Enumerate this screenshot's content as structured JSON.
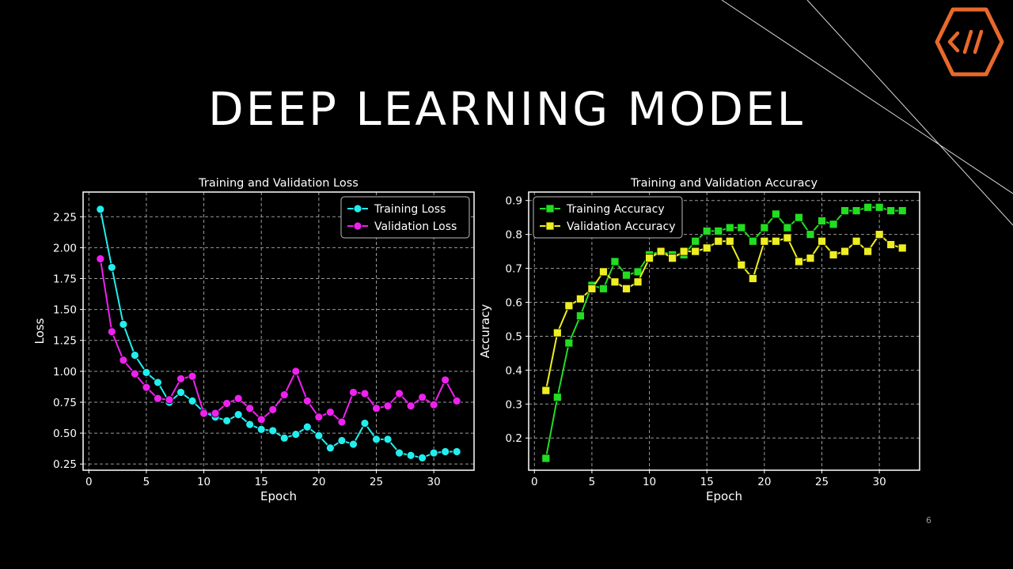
{
  "slide": {
    "title": "DEEP LEARNING MODEL",
    "page_number": "6",
    "logo_icon": "code-slash-hexagon-icon",
    "logo_color": "#e8692b"
  },
  "chart_data": [
    {
      "type": "line",
      "title": "Training and Validation Loss",
      "xlabel": "Epoch",
      "ylabel": "Loss",
      "xlim": [
        -0.5,
        33.5
      ],
      "ylim": [
        0.2,
        2.45
      ],
      "xticks": [
        0,
        5,
        10,
        15,
        20,
        25,
        30
      ],
      "yticks": [
        0.25,
        0.5,
        0.75,
        1.0,
        1.25,
        1.5,
        1.75,
        2.0,
        2.25
      ],
      "ytick_labels": [
        "0.25",
        "0.50",
        "0.75",
        "1.00",
        "1.25",
        "1.50",
        "1.75",
        "2.00",
        "2.25"
      ],
      "grid": true,
      "legend_position": "upper right",
      "marker": "circle",
      "x": [
        1,
        2,
        3,
        4,
        5,
        6,
        7,
        8,
        9,
        10,
        11,
        12,
        13,
        14,
        15,
        16,
        17,
        18,
        19,
        20,
        21,
        22,
        23,
        24,
        25,
        26,
        27,
        28,
        29,
        30,
        31,
        32
      ],
      "series": [
        {
          "name": "Training Loss",
          "color": "#22eeee",
          "values": [
            2.31,
            1.84,
            1.38,
            1.13,
            0.99,
            0.91,
            0.75,
            0.83,
            0.76,
            0.67,
            0.63,
            0.6,
            0.65,
            0.57,
            0.53,
            0.52,
            0.46,
            0.49,
            0.55,
            0.48,
            0.38,
            0.44,
            0.41,
            0.58,
            0.45,
            0.45,
            0.34,
            0.32,
            0.3,
            0.34,
            0.35,
            0.35
          ]
        },
        {
          "name": "Validation Loss",
          "color": "#ee22ee",
          "values": [
            1.91,
            1.32,
            1.09,
            0.98,
            0.87,
            0.78,
            0.77,
            0.94,
            0.96,
            0.66,
            0.66,
            0.74,
            0.78,
            0.7,
            0.61,
            0.69,
            0.81,
            1.0,
            0.76,
            0.63,
            0.67,
            0.59,
            0.83,
            0.82,
            0.7,
            0.72,
            0.82,
            0.72,
            0.79,
            0.73,
            0.93,
            0.76
          ]
        }
      ]
    },
    {
      "type": "line",
      "title": "Training and Validation Accuracy",
      "xlabel": "Epoch",
      "ylabel": "Accuracy",
      "xlim": [
        -0.5,
        33.5
      ],
      "ylim": [
        0.105,
        0.925
      ],
      "xticks": [
        0,
        5,
        10,
        15,
        20,
        25,
        30
      ],
      "yticks": [
        0.2,
        0.3,
        0.4,
        0.5,
        0.6,
        0.7,
        0.8,
        0.9
      ],
      "ytick_labels": [
        "0.2",
        "0.3",
        "0.4",
        "0.5",
        "0.6",
        "0.7",
        "0.8",
        "0.9"
      ],
      "grid": true,
      "legend_position": "upper left",
      "marker": "square",
      "x": [
        1,
        2,
        3,
        4,
        5,
        6,
        7,
        8,
        9,
        10,
        11,
        12,
        13,
        14,
        15,
        16,
        17,
        18,
        19,
        20,
        21,
        22,
        23,
        24,
        25,
        26,
        27,
        28,
        29,
        30,
        31,
        32
      ],
      "series": [
        {
          "name": "Training Accuracy",
          "color": "#22dd22",
          "values": [
            0.14,
            0.32,
            0.48,
            0.56,
            0.65,
            0.64,
            0.72,
            0.68,
            0.69,
            0.74,
            0.75,
            0.74,
            0.74,
            0.78,
            0.81,
            0.81,
            0.82,
            0.82,
            0.78,
            0.82,
            0.86,
            0.82,
            0.85,
            0.8,
            0.84,
            0.83,
            0.87,
            0.87,
            0.88,
            0.88,
            0.87,
            0.87
          ]
        },
        {
          "name": "Validation Accuracy",
          "color": "#eeee22",
          "values": [
            0.34,
            0.51,
            0.59,
            0.61,
            0.64,
            0.69,
            0.66,
            0.64,
            0.66,
            0.73,
            0.75,
            0.73,
            0.75,
            0.75,
            0.76,
            0.78,
            0.78,
            0.71,
            0.67,
            0.78,
            0.78,
            0.79,
            0.72,
            0.73,
            0.78,
            0.74,
            0.75,
            0.78,
            0.75,
            0.8,
            0.77,
            0.76
          ]
        }
      ]
    }
  ]
}
